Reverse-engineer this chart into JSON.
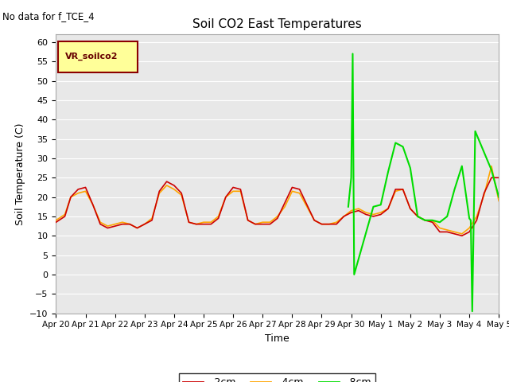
{
  "title": "Soil CO2 East Temperatures",
  "no_data_text": "No data for f_TCE_4",
  "legend_box_label": "VR_soilco2",
  "xlabel": "Time",
  "ylabel": "Soil Temperature (C)",
  "ylim": [
    -10,
    62
  ],
  "yticks": [
    -10,
    -5,
    0,
    5,
    10,
    15,
    20,
    25,
    30,
    35,
    40,
    45,
    50,
    55,
    60
  ],
  "bg_color": "#e8e8e8",
  "line_colors": {
    "-2cm": "#cc0000",
    "-4cm": "#ffa500",
    "-8cm": "#00dd00"
  },
  "red_x": [
    0,
    0.3,
    0.5,
    0.75,
    1.0,
    1.25,
    1.5,
    1.75,
    2.0,
    2.25,
    2.5,
    2.75,
    3.0,
    3.25,
    3.5,
    3.75,
    4.0,
    4.25,
    4.5,
    4.75,
    5.0,
    5.25,
    5.5,
    5.75,
    6.0,
    6.25,
    6.5,
    6.75,
    7.0,
    7.25,
    7.5,
    7.75,
    8.0,
    8.25,
    8.5,
    8.75,
    9.0,
    9.25,
    9.5,
    9.75,
    10.0,
    10.25,
    10.5,
    10.75,
    11.0,
    11.25,
    11.5,
    11.75,
    12.0,
    12.25,
    12.5,
    12.75,
    13.0,
    13.25,
    13.5,
    13.75,
    14.0,
    14.25,
    14.5,
    14.75,
    15.0
  ],
  "red_y": [
    13.5,
    15,
    20,
    22,
    22.5,
    18,
    13,
    12,
    12.5,
    13,
    13,
    12,
    13,
    14,
    21.5,
    24,
    23,
    21,
    13.5,
    13,
    13,
    13,
    14.5,
    20,
    22.5,
    22,
    14,
    13,
    13,
    13,
    14.5,
    18.5,
    22.5,
    22,
    18,
    14,
    13,
    13,
    13,
    15,
    16,
    16.5,
    15.5,
    15,
    15.5,
    17,
    22,
    22,
    17,
    15,
    14,
    13.5,
    11,
    11,
    10.5,
    10,
    11,
    14,
    21,
    25,
    25
  ],
  "orange_x": [
    0,
    0.3,
    0.5,
    0.75,
    1.0,
    1.25,
    1.5,
    1.75,
    2.0,
    2.25,
    2.5,
    2.75,
    3.0,
    3.25,
    3.5,
    3.75,
    4.0,
    4.25,
    4.5,
    4.75,
    5.0,
    5.25,
    5.5,
    5.75,
    6.0,
    6.25,
    6.5,
    6.75,
    7.0,
    7.25,
    7.5,
    7.75,
    8.0,
    8.25,
    8.5,
    8.75,
    9.0,
    9.25,
    9.5,
    9.75,
    10.0,
    10.25,
    10.5,
    10.75,
    11.0,
    11.25,
    11.5,
    11.75,
    12.0,
    12.25,
    12.5,
    12.75,
    13.0,
    13.25,
    13.5,
    13.75,
    14.0,
    14.25,
    14.5,
    14.75,
    15.0
  ],
  "orange_y": [
    14,
    15.5,
    20,
    21,
    21.5,
    18,
    13.5,
    12.5,
    13,
    13.5,
    13,
    12,
    13,
    14.5,
    21,
    23,
    22,
    20.5,
    13.5,
    13,
    13.5,
    13.5,
    15,
    20,
    21.5,
    21.5,
    14,
    13,
    13.5,
    13.5,
    15,
    17.5,
    21.5,
    21,
    17.5,
    14,
    13,
    13,
    13.5,
    15,
    16.5,
    17,
    16,
    15.5,
    16,
    17,
    21.5,
    22,
    17,
    15,
    14,
    14,
    12,
    11.5,
    11,
    10.5,
    12,
    15,
    20.5,
    28,
    19
  ],
  "green_x": [
    9.9,
    10.0,
    10.05,
    10.1,
    10.75,
    11.0,
    11.25,
    11.5,
    11.75,
    12.0,
    12.25,
    12.5,
    12.75,
    13.0,
    13.25,
    13.5,
    13.75,
    14.0,
    14.05,
    14.1,
    14.15,
    14.2,
    14.75,
    15.0
  ],
  "green_y": [
    17.5,
    25,
    57,
    0,
    17.5,
    18,
    26.5,
    34,
    33,
    27.5,
    15,
    14,
    14,
    13.5,
    15,
    22,
    28,
    14.5,
    14,
    -9.5,
    14,
    37,
    27,
    20
  ]
}
